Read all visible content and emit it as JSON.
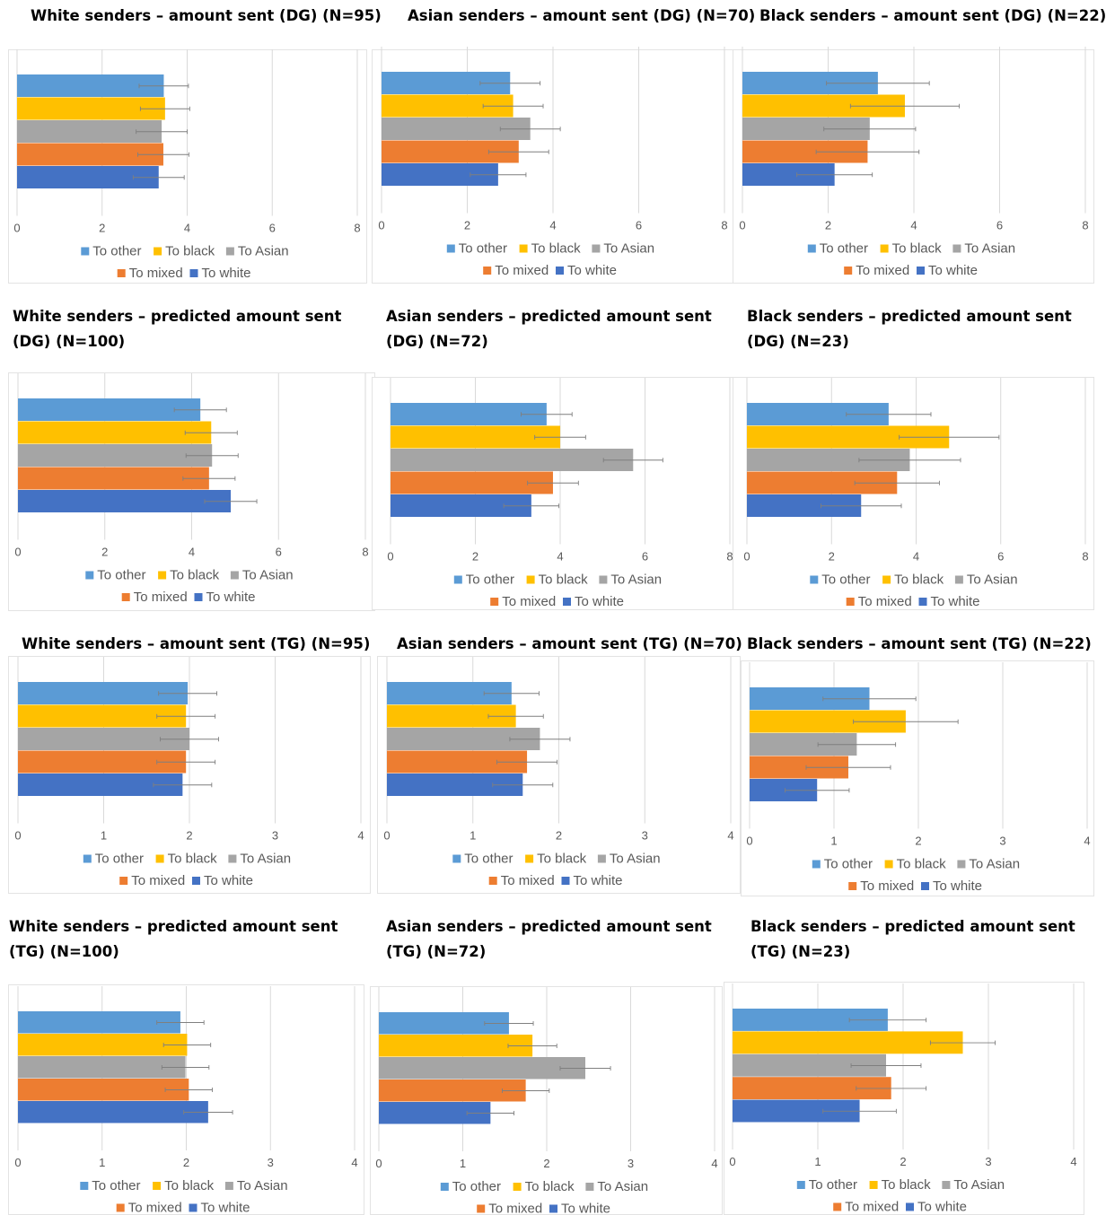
{
  "legend": [
    "To other",
    "To black",
    "To Asian",
    "To mixed",
    "To white"
  ],
  "colors": [
    "#5b9bd5",
    "#ffc000",
    "#a5a5a5",
    "#ed7d31",
    "#4472c4"
  ],
  "chart_data": [
    {
      "type": "bar",
      "orientation": "horizontal",
      "title": "White senders – amount sent (DG) (N=95)",
      "categories": [
        "To other",
        "To black",
        "To Asian",
        "To mixed",
        "To white"
      ],
      "values": [
        3.45,
        3.48,
        3.4,
        3.44,
        3.33
      ],
      "errors": [
        0.58,
        0.58,
        0.6,
        0.6,
        0.6
      ],
      "xlim": [
        0,
        8
      ],
      "ticks": [
        0,
        2,
        4,
        6,
        8
      ]
    },
    {
      "type": "bar",
      "orientation": "horizontal",
      "title": "Asian senders – amount sent (DG) (N=70)",
      "categories": [
        "To other",
        "To black",
        "To Asian",
        "To mixed",
        "To white"
      ],
      "values": [
        3.0,
        3.07,
        3.47,
        3.2,
        2.72
      ],
      "errors": [
        0.7,
        0.7,
        0.7,
        0.7,
        0.65
      ],
      "xlim": [
        0,
        8
      ],
      "ticks": [
        0,
        2,
        4,
        6,
        8
      ]
    },
    {
      "type": "bar",
      "orientation": "horizontal",
      "title": "Black senders – amount sent (DG) (N=22)",
      "categories": [
        "To other",
        "To black",
        "To Asian",
        "To mixed",
        "To white"
      ],
      "values": [
        3.16,
        3.79,
        2.97,
        2.92,
        2.15
      ],
      "errors": [
        1.2,
        1.27,
        1.07,
        1.2,
        0.88
      ],
      "xlim": [
        0,
        8
      ],
      "ticks": [
        0,
        2,
        4,
        6,
        8
      ]
    },
    {
      "type": "bar",
      "orientation": "horizontal",
      "title": "White senders – predicted amount sent (DG) (N=100)",
      "categories": [
        "To other",
        "To black",
        "To Asian",
        "To mixed",
        "To white"
      ],
      "values": [
        4.2,
        4.45,
        4.47,
        4.4,
        4.9
      ],
      "errors": [
        0.6,
        0.6,
        0.6,
        0.6,
        0.6
      ],
      "xlim": [
        0,
        8
      ],
      "ticks": [
        0,
        2,
        4,
        6,
        8
      ]
    },
    {
      "type": "bar",
      "orientation": "horizontal",
      "title": "Asian senders – predicted amount sent (DG) (N=72)",
      "categories": [
        "To other",
        "To black",
        "To Asian",
        "To mixed",
        "To white"
      ],
      "values": [
        3.68,
        4.0,
        5.72,
        3.83,
        3.32
      ],
      "errors": [
        0.6,
        0.6,
        0.7,
        0.6,
        0.65
      ],
      "xlim": [
        0,
        8
      ],
      "ticks": [
        0,
        2,
        4,
        6,
        8
      ]
    },
    {
      "type": "bar",
      "orientation": "horizontal",
      "title": "Black senders – predicted amount sent (DG) (N=23)",
      "categories": [
        "To other",
        "To black",
        "To Asian",
        "To mixed",
        "To white"
      ],
      "values": [
        3.35,
        4.78,
        3.85,
        3.55,
        2.7
      ],
      "errors": [
        1.0,
        1.18,
        1.2,
        1.0,
        0.95
      ],
      "xlim": [
        0,
        8
      ],
      "ticks": [
        0,
        2,
        4,
        6,
        8
      ]
    },
    {
      "type": "bar",
      "orientation": "horizontal",
      "title": "White senders – amount sent (TG) (N=95)",
      "categories": [
        "To other",
        "To black",
        "To Asian",
        "To mixed",
        "To white"
      ],
      "values": [
        1.98,
        1.96,
        2.0,
        1.96,
        1.92
      ],
      "errors": [
        0.34,
        0.34,
        0.34,
        0.34,
        0.34
      ],
      "xlim": [
        0,
        4
      ],
      "ticks": [
        0,
        1,
        2,
        3,
        4
      ]
    },
    {
      "type": "bar",
      "orientation": "horizontal",
      "title": "Asian senders – amount sent (TG) (N=70)",
      "categories": [
        "To other",
        "To black",
        "To Asian",
        "To mixed",
        "To white"
      ],
      "values": [
        1.45,
        1.5,
        1.78,
        1.63,
        1.58
      ],
      "errors": [
        0.32,
        0.32,
        0.35,
        0.35,
        0.35
      ],
      "xlim": [
        0,
        4
      ],
      "ticks": [
        0,
        1,
        2,
        3,
        4
      ]
    },
    {
      "type": "bar",
      "orientation": "horizontal",
      "title": "Black senders – amount sent (TG) (N=22)",
      "categories": [
        "To other",
        "To black",
        "To Asian",
        "To mixed",
        "To white"
      ],
      "values": [
        1.42,
        1.85,
        1.27,
        1.17,
        0.8
      ],
      "errors": [
        0.55,
        0.62,
        0.46,
        0.5,
        0.38
      ],
      "xlim": [
        0,
        4
      ],
      "ticks": [
        0,
        1,
        2,
        3,
        4
      ]
    },
    {
      "type": "bar",
      "orientation": "horizontal",
      "title": "White senders – predicted amount sent (TG) (N=100)",
      "categories": [
        "To other",
        "To black",
        "To Asian",
        "To mixed",
        "To white"
      ],
      "values": [
        1.93,
        2.01,
        1.99,
        2.03,
        2.26
      ],
      "errors": [
        0.28,
        0.28,
        0.28,
        0.28,
        0.29
      ],
      "xlim": [
        0,
        4
      ],
      "ticks": [
        0,
        1,
        2,
        3,
        4
      ]
    },
    {
      "type": "bar",
      "orientation": "horizontal",
      "title": "Asian senders – predicted amount sent (TG) (N=72)",
      "categories": [
        "To other",
        "To black",
        "To Asian",
        "To mixed",
        "To white"
      ],
      "values": [
        1.55,
        1.83,
        2.46,
        1.75,
        1.33
      ],
      "errors": [
        0.29,
        0.29,
        0.3,
        0.28,
        0.28
      ],
      "xlim": [
        0,
        4
      ],
      "ticks": [
        0,
        1,
        2,
        3,
        4
      ]
    },
    {
      "type": "bar",
      "orientation": "horizontal",
      "title": "Black senders – predicted amount sent (TG) (N=23)",
      "categories": [
        "To other",
        "To black",
        "To Asian",
        "To mixed",
        "To white"
      ],
      "values": [
        1.82,
        2.7,
        1.8,
        1.86,
        1.49
      ],
      "errors": [
        0.45,
        0.38,
        0.41,
        0.41,
        0.43
      ],
      "xlim": [
        0,
        4
      ],
      "ticks": [
        0,
        1,
        2,
        3,
        4
      ]
    }
  ]
}
